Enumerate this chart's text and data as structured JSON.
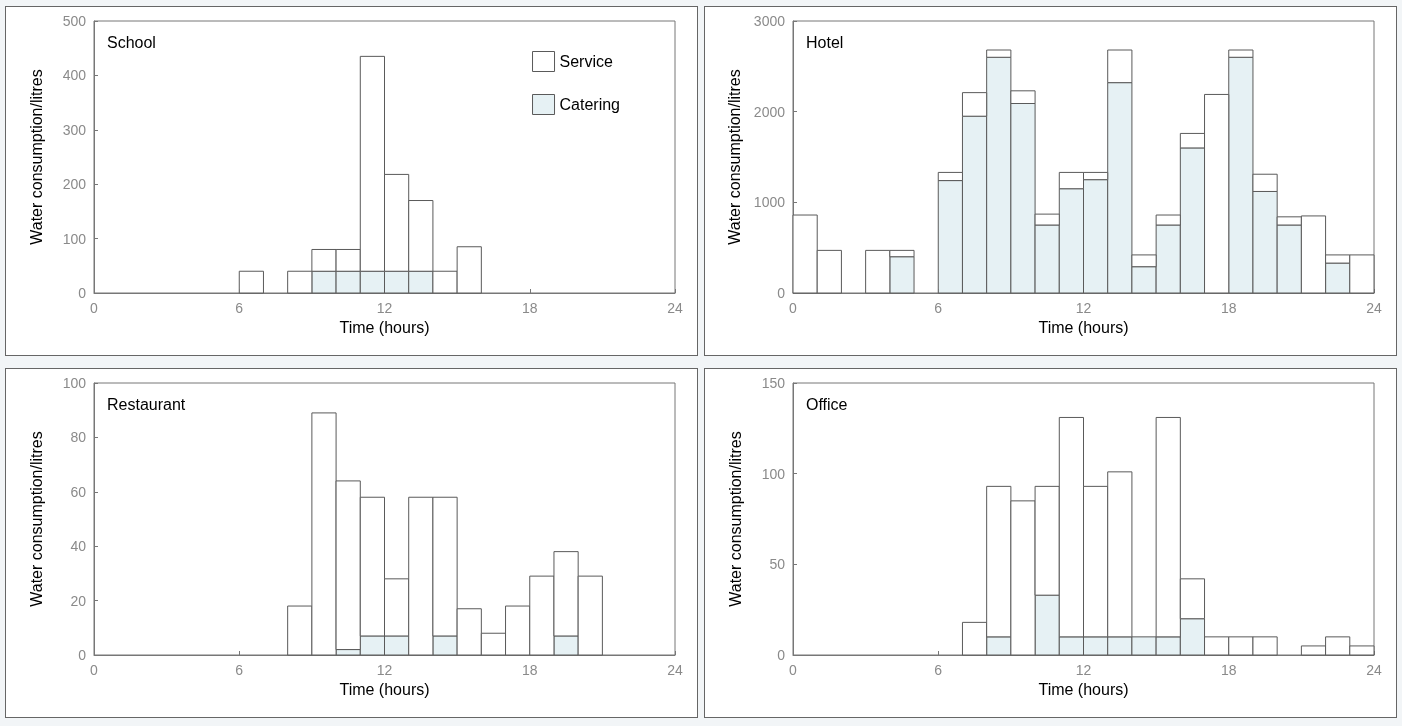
{
  "chart_data": [
    {
      "type": "bar",
      "title": "School",
      "stacked": true,
      "x": [
        0.5,
        1.5,
        2.5,
        3.5,
        4.5,
        5.5,
        6.5,
        7.5,
        8.5,
        9.5,
        10.5,
        11.5,
        12.5,
        13.5,
        14.5,
        15.5,
        16.5,
        17.5,
        18.5,
        19.5,
        20.5,
        21.5,
        22.5,
        23.5
      ],
      "xlim": [
        0,
        24
      ],
      "xticks": [
        0,
        6,
        12,
        18,
        24
      ],
      "ylim": [
        0,
        500
      ],
      "yticks": [
        0,
        100,
        200,
        300,
        400,
        500
      ],
      "xlabel": "Time (hours)",
      "ylabel": "Water consumption/litres",
      "legend": "top right",
      "series": [
        {
          "name": "Catering",
          "color": "#e6f1f4",
          "values": [
            0,
            0,
            0,
            0,
            0,
            0,
            0,
            0,
            0,
            40,
            40,
            40,
            40,
            40,
            0,
            0,
            0,
            0,
            0,
            0,
            0,
            0,
            0,
            0
          ]
        },
        {
          "name": "Service",
          "color": "#ffffff",
          "values": [
            0,
            0,
            0,
            0,
            0,
            0,
            40,
            0,
            40,
            40,
            40,
            395,
            178,
            130,
            40,
            85,
            0,
            0,
            0,
            0,
            0,
            0,
            0,
            0
          ]
        }
      ]
    },
    {
      "type": "bar",
      "title": "Hotel",
      "stacked": true,
      "x": [
        0.5,
        1.5,
        2.5,
        3.5,
        4.5,
        5.5,
        6.5,
        7.5,
        8.5,
        9.5,
        10.5,
        11.5,
        12.5,
        13.5,
        14.5,
        15.5,
        16.5,
        17.5,
        18.5,
        19.5,
        20.5,
        21.5,
        22.5,
        23.5
      ],
      "xlim": [
        0,
        24
      ],
      "xticks": [
        0,
        6,
        12,
        18,
        24
      ],
      "ylim": [
        0,
        3000
      ],
      "yticks": [
        0,
        1000,
        2000,
        3000
      ],
      "xlabel": "Time (hours)",
      "ylabel": "Water consumption/litres",
      "series": [
        {
          "color": "#e6f1f4",
          "values": [
            0,
            0,
            0,
            0,
            400,
            0,
            1240,
            1950,
            2600,
            2090,
            750,
            1150,
            1250,
            2320,
            290,
            750,
            1600,
            0,
            2600,
            1120,
            750,
            0,
            330,
            0
          ]
        },
        {
          "color": "#ffffff",
          "values": [
            860,
            470,
            0,
            470,
            70,
            0,
            90,
            260,
            80,
            140,
            120,
            180,
            80,
            360,
            130,
            110,
            160,
            2190,
            80,
            190,
            90,
            850,
            90,
            420
          ]
        }
      ]
    },
    {
      "type": "bar",
      "title": "Restaurant",
      "stacked": true,
      "x": [
        0.5,
        1.5,
        2.5,
        3.5,
        4.5,
        5.5,
        6.5,
        7.5,
        8.5,
        9.5,
        10.5,
        11.5,
        12.5,
        13.5,
        14.5,
        15.5,
        16.5,
        17.5,
        18.5,
        19.5,
        20.5,
        21.5,
        22.5,
        23.5
      ],
      "xlim": [
        0,
        24
      ],
      "xticks": [
        0,
        6,
        12,
        18,
        24
      ],
      "ylim": [
        0,
        100
      ],
      "yticks": [
        0,
        20,
        40,
        60,
        80,
        100
      ],
      "xlabel": "Time (hours)",
      "ylabel": "Water consumption/litres",
      "series": [
        {
          "color": "#e6f1f4",
          "values": [
            0,
            0,
            0,
            0,
            0,
            0,
            0,
            0,
            0,
            0,
            2,
            7,
            7,
            0,
            7,
            0,
            0,
            0,
            0,
            7,
            0,
            0,
            0,
            0
          ]
        },
        {
          "color": "#ffffff",
          "values": [
            0,
            0,
            0,
            0,
            0,
            0,
            0,
            0,
            18,
            89,
            62,
            51,
            21,
            58,
            51,
            17,
            8,
            18,
            29,
            31,
            29,
            0,
            0,
            0
          ]
        }
      ]
    },
    {
      "type": "bar",
      "title": "Office",
      "stacked": true,
      "x": [
        0.5,
        1.5,
        2.5,
        3.5,
        4.5,
        5.5,
        6.5,
        7.5,
        8.5,
        9.5,
        10.5,
        11.5,
        12.5,
        13.5,
        14.5,
        15.5,
        16.5,
        17.5,
        18.5,
        19.5,
        20.5,
        21.5,
        22.5,
        23.5
      ],
      "xlim": [
        0,
        24
      ],
      "xticks": [
        0,
        6,
        12,
        18,
        24
      ],
      "ylim": [
        0,
        150
      ],
      "yticks": [
        0,
        50,
        100,
        150
      ],
      "xlabel": "Time (hours)",
      "ylabel": "Water consumption/litres",
      "series": [
        {
          "color": "#e6f1f4",
          "values": [
            0,
            0,
            0,
            0,
            0,
            0,
            0,
            0,
            10,
            0,
            33,
            10,
            10,
            10,
            10,
            10,
            20,
            0,
            0,
            0,
            0,
            0,
            0,
            0
          ]
        },
        {
          "color": "#ffffff",
          "values": [
            0,
            0,
            0,
            0,
            0,
            0,
            0,
            18,
            83,
            85,
            60,
            121,
            83,
            91,
            0,
            121,
            22,
            10,
            10,
            10,
            0,
            5,
            10,
            5
          ]
        }
      ]
    }
  ]
}
